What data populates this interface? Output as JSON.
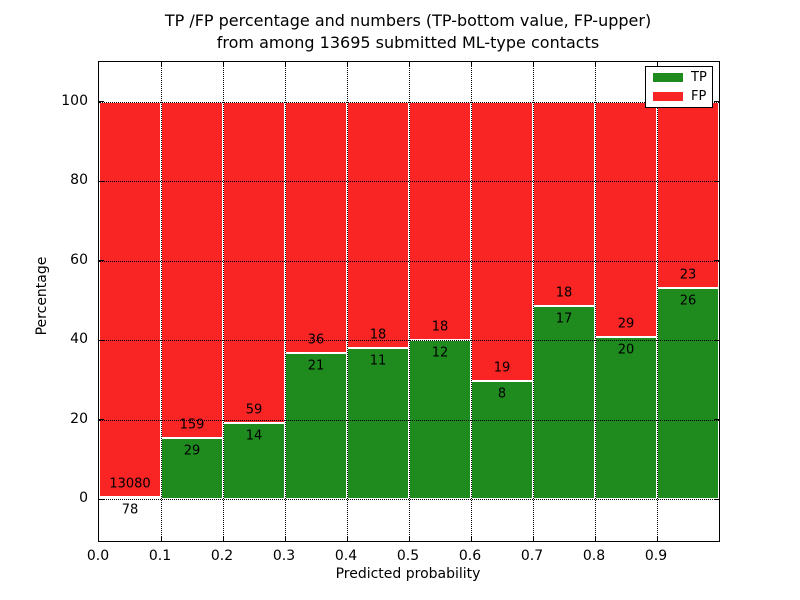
{
  "header": {
    "title_line1": "TP /FP percentage and numbers (TP-bottom value, FP-upper)",
    "title_line2": "from among 13695 submitted ML-type contacts"
  },
  "axes": {
    "xlabel": "Predicted probability",
    "ylabel": "Percentage"
  },
  "legend": {
    "items": [
      {
        "label": "TP",
        "color": "#1f8b1f"
      },
      {
        "label": "FP",
        "color": "#f92525"
      }
    ]
  },
  "chart_data": {
    "type": "bar",
    "subtype": "stacked-100-percent",
    "title": "TP /FP percentage and numbers (TP-bottom value, FP-upper) from among 13695 submitted ML-type contacts",
    "xlabel": "Predicted probability",
    "ylabel": "Percentage",
    "total_submitted": 13695,
    "bin_width": 0.1,
    "categories": [
      "0.0-0.1",
      "0.1-0.2",
      "0.2-0.3",
      "0.3-0.4",
      "0.4-0.5",
      "0.5-0.6",
      "0.6-0.7",
      "0.7-0.8",
      "0.8-0.9",
      "0.9-1.0"
    ],
    "x_tick_labels": [
      "0.0",
      "0.1",
      "0.2",
      "0.3",
      "0.4",
      "0.5",
      "0.6",
      "0.7",
      "0.8",
      "0.9"
    ],
    "y_ticks": [
      0,
      20,
      40,
      60,
      80,
      100
    ],
    "xlim": [
      0.0,
      1.0
    ],
    "ylim": [
      -10.5,
      110
    ],
    "grid": "dotted",
    "legend_position": "upper-right",
    "series": [
      {
        "name": "TP",
        "color": "#1f8b1f",
        "counts": [
          78,
          29,
          14,
          21,
          11,
          12,
          8,
          17,
          20,
          26
        ]
      },
      {
        "name": "FP",
        "color": "#f92525",
        "counts": [
          13080,
          159,
          59,
          36,
          18,
          18,
          19,
          18,
          29,
          23
        ]
      }
    ],
    "tp_percent_of_bin": [
      0.59,
      15.43,
      19.18,
      36.84,
      37.93,
      40.0,
      29.63,
      48.57,
      40.82,
      53.06
    ]
  }
}
